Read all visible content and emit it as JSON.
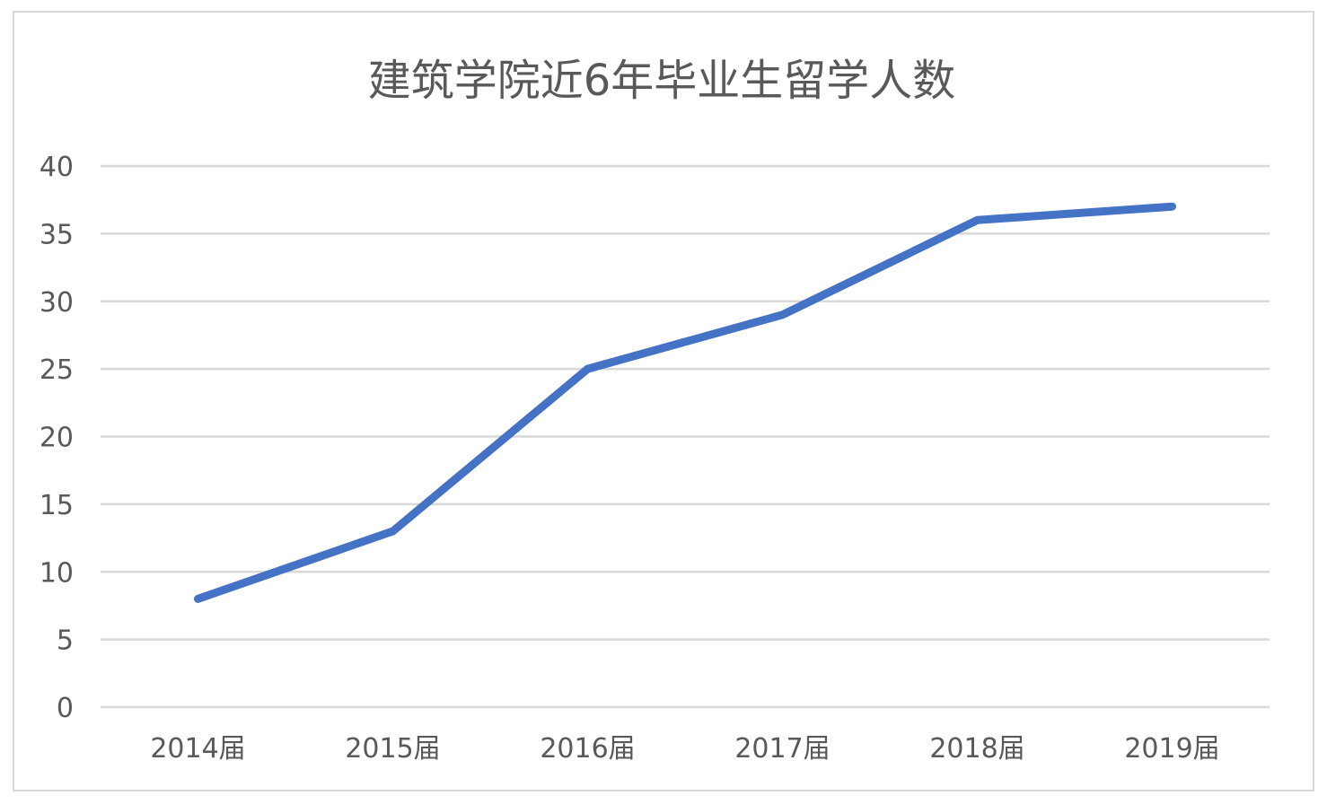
{
  "chart_data": {
    "type": "line",
    "title": "建筑学院近6年毕业生留学人数",
    "xlabel": "",
    "ylabel": "",
    "categories": [
      "2014届",
      "2015届",
      "2016届",
      "2017届",
      "2018届",
      "2019届"
    ],
    "series": [
      {
        "values": [
          8,
          13,
          25,
          29,
          36,
          37
        ],
        "color": "#4472c4"
      }
    ],
    "ylim": [
      0,
      40
    ],
    "yticks": [
      0,
      5,
      10,
      15,
      20,
      25,
      30,
      35,
      40
    ],
    "grid": true,
    "gridColor": "#d9d9d9",
    "legend": "none"
  }
}
